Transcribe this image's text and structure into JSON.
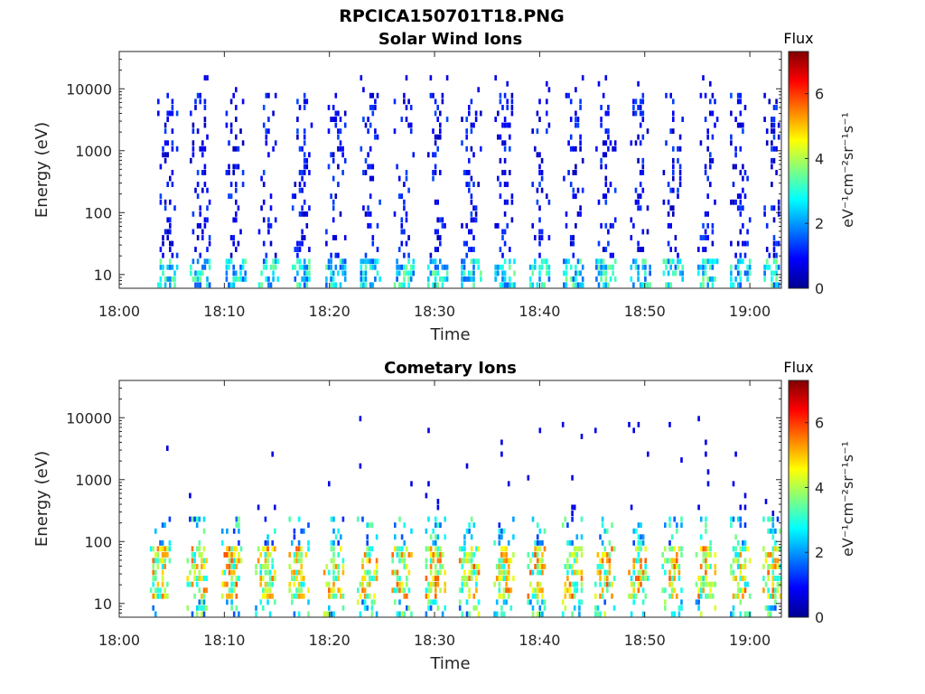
{
  "figure_title": "RPCICA150701T18.PNG",
  "chart_data": [
    {
      "type": "heatmap",
      "title": "Solar Wind Ions",
      "xlabel": "Time",
      "ylabel": "Energy (eV)",
      "x_ticks": [
        "18:00",
        "18:10",
        "18:20",
        "18:30",
        "18:40",
        "18:50",
        "19:00"
      ],
      "x_range_minutes": [
        0,
        63
      ],
      "y_scale": "log",
      "y_ticks": [
        {
          "value": 10,
          "label": "10"
        },
        {
          "value": 100,
          "label": "100"
        },
        {
          "value": 1000,
          "label": "1000"
        },
        {
          "value": 10000,
          "label": "10000"
        }
      ],
      "y_range": [
        6,
        40000
      ],
      "colorbar": {
        "title": "Flux",
        "label": "eV⁻¹cm⁻²sr⁻¹s⁻¹",
        "ticks": [
          "0",
          "2",
          "4",
          "6"
        ],
        "range": [
          0,
          7.3
        ],
        "colormap": "jet"
      },
      "burst_times_minutes": [
        4.5,
        7.6,
        11.0,
        14.1,
        17.3,
        20.5,
        23.8,
        27.0,
        30.2,
        33.4,
        36.6,
        39.9,
        43.1,
        46.2,
        49.5,
        52.6,
        55.9,
        59.0,
        62.2
      ],
      "pattern": "periodic vertical bursts of sparse low flux (0-2) spanning ~10 eV to ~15000 eV, with moderate flux (2-3) near 10-40 eV"
    },
    {
      "type": "heatmap",
      "title": "Cometary Ions",
      "xlabel": "Time",
      "ylabel": "Energy (eV)",
      "x_ticks": [
        "18:00",
        "18:10",
        "18:20",
        "18:30",
        "18:40",
        "18:50",
        "19:00"
      ],
      "x_range_minutes": [
        0,
        63
      ],
      "y_scale": "log",
      "y_ticks": [
        {
          "value": 10,
          "label": "10"
        },
        {
          "value": 100,
          "label": "100"
        },
        {
          "value": 1000,
          "label": "1000"
        },
        {
          "value": 10000,
          "label": "10000"
        }
      ],
      "y_range": [
        6,
        40000
      ],
      "colorbar": {
        "title": "Flux",
        "label": "eV⁻¹cm⁻²sr⁻¹s⁻¹",
        "ticks": [
          "0",
          "2",
          "4",
          "6"
        ],
        "range": [
          0,
          7.3
        ],
        "colormap": "jet"
      },
      "burst_times_minutes": [
        3.8,
        7.3,
        10.6,
        13.8,
        17.0,
        20.3,
        23.5,
        26.8,
        30.0,
        33.2,
        36.5,
        39.7,
        43.0,
        46.1,
        49.3,
        52.5,
        55.7,
        59.0,
        62.1
      ],
      "pattern": "periodic bursts of high flux (4-6) concentrated at ~20-60 eV, extending to ~300 eV with lower flux, sparse points up to ~10000 eV"
    }
  ]
}
